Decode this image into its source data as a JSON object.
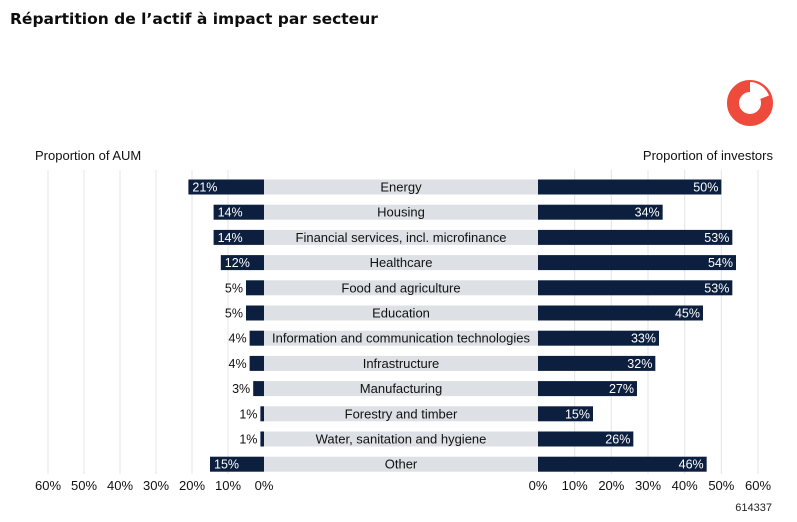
{
  "title": "Répartition de l’actif à impact par secteur",
  "footnote": "614337",
  "logo": {
    "icon": "ring-logo-icon",
    "color": "#ef4b3c"
  },
  "colors": {
    "bar": "#0c1f3f",
    "label_band": "#dde1e5",
    "grid": "#e2e5e8",
    "text": "#111111"
  },
  "chart_data": {
    "type": "bar",
    "orientation": "horizontal-butterfly",
    "categories": [
      "Energy",
      "Housing",
      "Financial services, incl. microfinance",
      "Healthcare",
      "Food and agriculture",
      "Education",
      "Information and communication technologies",
      "Infrastructure",
      "Manufacturing",
      "Forestry and timber",
      "Water, sanitation and hygiene",
      "Other"
    ],
    "series": [
      {
        "name": "Proportion of AUM",
        "side": "left",
        "values": [
          21,
          14,
          14,
          12,
          5,
          5,
          4,
          4,
          3,
          1,
          1,
          15
        ],
        "labels": [
          "21%",
          "14%",
          "14%",
          "12%",
          "5%",
          "5%",
          "4%",
          "4%",
          "3%",
          "1%",
          "1%",
          "15%"
        ]
      },
      {
        "name": "Proportion of investors",
        "side": "right",
        "values": [
          50,
          34,
          53,
          54,
          53,
          45,
          33,
          32,
          27,
          15,
          26,
          46
        ],
        "labels": [
          "50%",
          "34%",
          "53%",
          "54%",
          "53%",
          "45%",
          "33%",
          "32%",
          "27%",
          "15%",
          "26%",
          "46%"
        ]
      }
    ],
    "left_axis": {
      "range": [
        0,
        60
      ],
      "ticks": [
        "0%",
        "10%",
        "20%",
        "30%",
        "40%",
        "50%",
        "60%"
      ]
    },
    "right_axis": {
      "range": [
        0,
        60
      ],
      "ticks": [
        "0%",
        "10%",
        "20%",
        "30%",
        "40%",
        "50%",
        "60%"
      ]
    },
    "grid": true,
    "value_unit": "%"
  }
}
